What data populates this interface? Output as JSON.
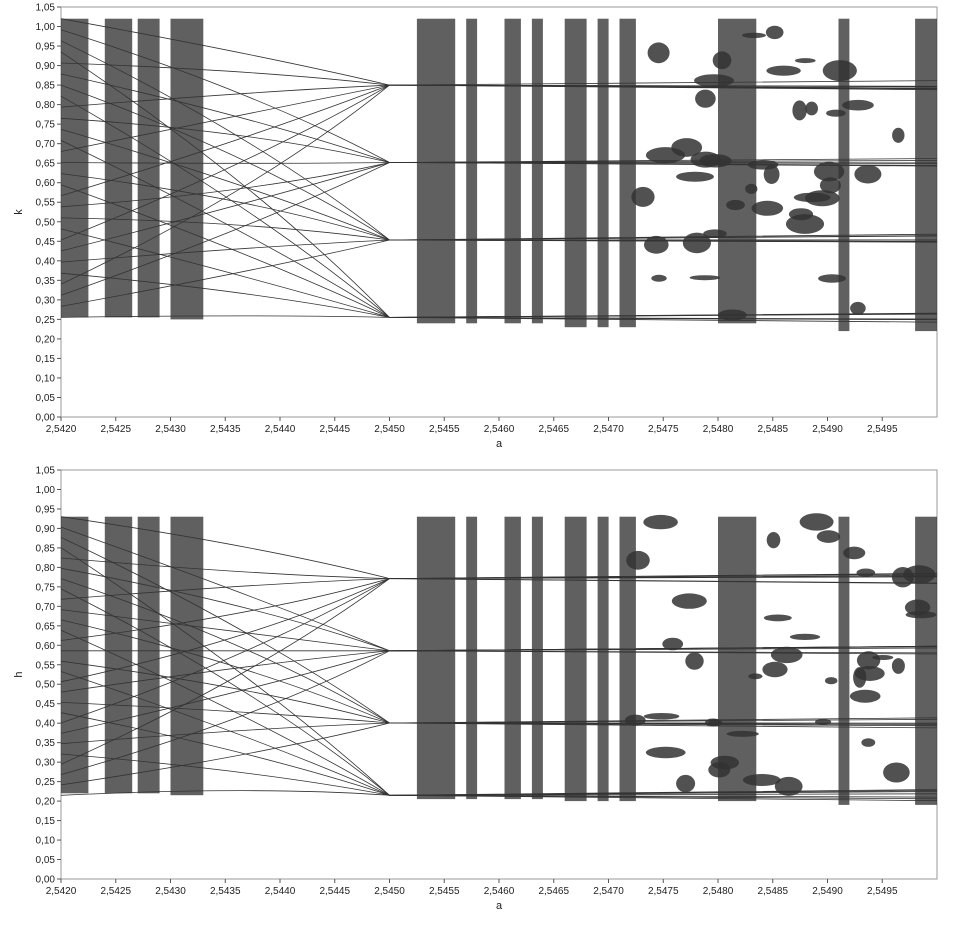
{
  "chart_data": [
    {
      "type": "scatter",
      "subtype": "bifurcation-diagram",
      "title": "",
      "xlabel": "a",
      "ylabel": "k",
      "xlim": [
        2.542,
        2.55
      ],
      "ylim": [
        0,
        1.05
      ],
      "x_ticks": [
        2.542,
        2.5425,
        2.543,
        2.5435,
        2.544,
        2.5445,
        2.545,
        2.5455,
        2.546,
        2.5465,
        2.547,
        2.5475,
        2.548,
        2.5485,
        2.549,
        2.5495
      ],
      "x_tick_labels": [
        "2,5420",
        "2,5425",
        "2,5430",
        "2,5435",
        "2,5440",
        "2,5445",
        "2,5450",
        "2,5455",
        "2,5460",
        "2,5465",
        "2,5470",
        "2,5475",
        "2,5480",
        "2,5485",
        "2,5490",
        "2,5495"
      ],
      "y_ticks": [
        0,
        0.05,
        0.1,
        0.15,
        0.2,
        0.25,
        0.3,
        0.35,
        0.4,
        0.45,
        0.5,
        0.55,
        0.6,
        0.65,
        0.7,
        0.75,
        0.8,
        0.85,
        0.9,
        0.95,
        1.0,
        1.05
      ],
      "y_tick_labels": [
        "0,00",
        "0,05",
        "0,10",
        "0,15",
        "0,20",
        "0,25",
        "0,30",
        "0,35",
        "0,40",
        "0,45",
        "0,50",
        "0,55",
        "0,60",
        "0,65",
        "0,70",
        "0,75",
        "0,80",
        "0,85",
        "0,90",
        "0,95",
        "1,00",
        "1,05"
      ],
      "grid": false,
      "color": "#333333",
      "band_range": [
        0.255,
        1.02
      ],
      "chaotic_bands": [
        {
          "x": [
            2.542,
            2.54225
          ],
          "y": [
            0.255,
            1.02
          ]
        },
        {
          "x": [
            2.5424,
            2.54265
          ],
          "y": [
            0.255,
            1.02
          ]
        },
        {
          "x": [
            2.5427,
            2.5429
          ],
          "y": [
            0.255,
            1.02
          ]
        },
        {
          "x": [
            2.543,
            2.5433
          ],
          "y": [
            0.25,
            1.02
          ]
        },
        {
          "x": [
            2.54525,
            2.5456
          ],
          "y": [
            0.24,
            1.02
          ]
        },
        {
          "x": [
            2.5457,
            2.5458
          ],
          "y": [
            0.24,
            1.02
          ]
        },
        {
          "x": [
            2.54605,
            2.5462
          ],
          "y": [
            0.24,
            1.02
          ]
        },
        {
          "x": [
            2.5463,
            2.5464
          ],
          "y": [
            0.24,
            1.02
          ]
        },
        {
          "x": [
            2.5466,
            2.5468
          ],
          "y": [
            0.23,
            1.02
          ]
        },
        {
          "x": [
            2.5469,
            2.547
          ],
          "y": [
            0.23,
            1.02
          ]
        },
        {
          "x": [
            2.5471,
            2.54725
          ],
          "y": [
            0.23,
            1.02
          ]
        },
        {
          "x": [
            2.548,
            2.54835
          ],
          "y": [
            0.24,
            1.02
          ]
        },
        {
          "x": [
            2.5491,
            2.5492
          ],
          "y": [
            0.22,
            1.02
          ]
        },
        {
          "x": [
            2.5498,
            2.55
          ],
          "y": [
            0.22,
            1.02
          ]
        }
      ]
    },
    {
      "type": "scatter",
      "subtype": "bifurcation-diagram",
      "title": "",
      "xlabel": "a",
      "ylabel": "h",
      "xlim": [
        2.542,
        2.55
      ],
      "ylim": [
        0,
        1.05
      ],
      "x_ticks": [
        2.542,
        2.5425,
        2.543,
        2.5435,
        2.544,
        2.5445,
        2.545,
        2.5455,
        2.546,
        2.5465,
        2.547,
        2.5475,
        2.548,
        2.5485,
        2.549,
        2.5495
      ],
      "x_tick_labels": [
        "2,5420",
        "2,5425",
        "2,5430",
        "2,5435",
        "2,5440",
        "2,5445",
        "2,5450",
        "2,5455",
        "2,5460",
        "2,5465",
        "2,5470",
        "2,5475",
        "2,5480",
        "2,5485",
        "2,5490",
        "2,5495"
      ],
      "y_ticks": [
        0,
        0.05,
        0.1,
        0.15,
        0.2,
        0.25,
        0.3,
        0.35,
        0.4,
        0.45,
        0.5,
        0.55,
        0.6,
        0.65,
        0.7,
        0.75,
        0.8,
        0.85,
        0.9,
        0.95,
        1.0,
        1.05
      ],
      "y_tick_labels": [
        "0,00",
        "0,05",
        "0,10",
        "0,15",
        "0,20",
        "0,25",
        "0,30",
        "0,35",
        "0,40",
        "0,45",
        "0,50",
        "0,55",
        "0,60",
        "0,65",
        "0,70",
        "0,75",
        "0,80",
        "0,85",
        "0,90",
        "0,95",
        "1,00",
        "1,05"
      ],
      "grid": false,
      "color": "#333333",
      "band_range": [
        0.215,
        0.93
      ],
      "chaotic_bands": [
        {
          "x": [
            2.542,
            2.54225
          ],
          "y": [
            0.22,
            0.93
          ]
        },
        {
          "x": [
            2.5424,
            2.54265
          ],
          "y": [
            0.22,
            0.93
          ]
        },
        {
          "x": [
            2.5427,
            2.5429
          ],
          "y": [
            0.22,
            0.93
          ]
        },
        {
          "x": [
            2.543,
            2.5433
          ],
          "y": [
            0.215,
            0.93
          ]
        },
        {
          "x": [
            2.54525,
            2.5456
          ],
          "y": [
            0.205,
            0.93
          ]
        },
        {
          "x": [
            2.5457,
            2.5458
          ],
          "y": [
            0.205,
            0.93
          ]
        },
        {
          "x": [
            2.54605,
            2.5462
          ],
          "y": [
            0.205,
            0.93
          ]
        },
        {
          "x": [
            2.5463,
            2.5464
          ],
          "y": [
            0.205,
            0.93
          ]
        },
        {
          "x": [
            2.5466,
            2.5468
          ],
          "y": [
            0.2,
            0.93
          ]
        },
        {
          "x": [
            2.5469,
            2.547
          ],
          "y": [
            0.2,
            0.93
          ]
        },
        {
          "x": [
            2.5471,
            2.54725
          ],
          "y": [
            0.2,
            0.93
          ]
        },
        {
          "x": [
            2.548,
            2.54835
          ],
          "y": [
            0.2,
            0.93
          ]
        },
        {
          "x": [
            2.5491,
            2.5492
          ],
          "y": [
            0.19,
            0.93
          ]
        },
        {
          "x": [
            2.5498,
            2.55
          ],
          "y": [
            0.19,
            0.93
          ]
        }
      ]
    }
  ]
}
